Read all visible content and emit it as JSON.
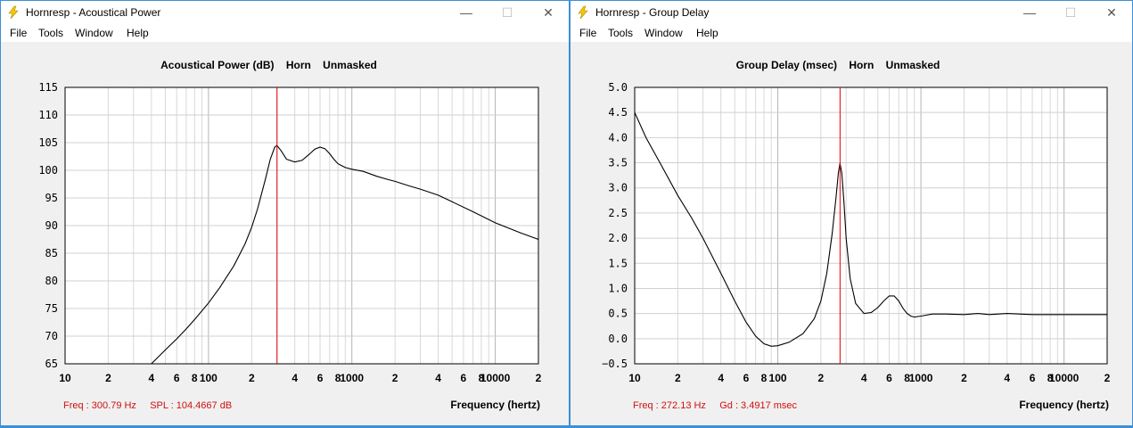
{
  "colors": {
    "accent": "#3b8fd9",
    "marker": "#e00000",
    "readout": "#d01010",
    "curve": "#000000",
    "grid": "#c8c8c8"
  },
  "windows": [
    {
      "title": "Hornresp - Acoustical Power",
      "icon": "lightning-bolt-icon",
      "menu": [
        "File",
        "Tools",
        "Window",
        "Help"
      ],
      "controls": {
        "minimize": "—",
        "maximize": "☐",
        "close": "✕"
      },
      "chart_title": "Acoustical Power (dB)    Horn    Unmasked",
      "readout": "Freq : 300.79 Hz     SPL : 104.4667 dB",
      "xlabel": "Frequency (hertz)"
    },
    {
      "title": "Hornresp - Group Delay",
      "icon": "lightning-bolt-icon",
      "menu": [
        "File",
        "Tools",
        "Window",
        "Help"
      ],
      "controls": {
        "minimize": "—",
        "maximize": "☐",
        "close": "✕"
      },
      "chart_title": "Group Delay (msec)    Horn    Unmasked",
      "readout": "Freq : 272.13 Hz     Gd : 3.4917 msec",
      "xlabel": "Frequency (hertz)"
    }
  ],
  "chart_data": [
    {
      "type": "line",
      "title": "Acoustical Power (dB)    Horn    Unmasked",
      "xlabel": "Frequency (hertz)",
      "ylabel": "",
      "xscale": "log",
      "xlim": [
        10,
        20000
      ],
      "ylim": [
        65,
        115
      ],
      "grid": true,
      "x_tick_labels": [
        "10",
        "2",
        "4",
        "6",
        "8",
        "100",
        "2",
        "4",
        "6",
        "8",
        "1000",
        "2",
        "4",
        "6",
        "8",
        "10000",
        "2"
      ],
      "y_ticks": [
        65,
        70,
        75,
        80,
        85,
        90,
        95,
        100,
        105,
        110,
        115
      ],
      "y_tick_labels": [
        "65",
        "70",
        "75",
        "80",
        "85",
        "90",
        "95",
        "100",
        "105",
        "110",
        "115"
      ],
      "cursor_x": 300.79,
      "series": [
        {
          "x": [
            40,
            50,
            60,
            70,
            80,
            100,
            120,
            150,
            180,
            200,
            220,
            250,
            270,
            290,
            300,
            320,
            350,
            400,
            450,
            500,
            550,
            600,
            650,
            700,
            750,
            800,
            900,
            1000,
            1200,
            1500,
            1800,
            2000,
            2500,
            3000,
            4000,
            5000,
            7000,
            10000,
            15000,
            20000
          ],
          "y": [
            65,
            67.5,
            69.5,
            71.3,
            73,
            76,
            78.8,
            82.7,
            86.7,
            89.7,
            93,
            98.5,
            102,
            104.2,
            104.5,
            103.6,
            102,
            101.5,
            101.8,
            102.8,
            103.8,
            104.2,
            103.9,
            103,
            102,
            101.2,
            100.5,
            100.2,
            99.8,
            98.9,
            98.3,
            98,
            97.2,
            96.6,
            95.5,
            94.3,
            92.5,
            90.5,
            88.7,
            87.5
          ]
        }
      ]
    },
    {
      "type": "line",
      "title": "Group Delay (msec)    Horn    Unmasked",
      "xlabel": "Frequency (hertz)",
      "ylabel": "",
      "xscale": "log",
      "xlim": [
        10,
        20000
      ],
      "ylim": [
        -0.5,
        5.0
      ],
      "grid": true,
      "x_tick_labels": [
        "10",
        "2",
        "4",
        "6",
        "8",
        "100",
        "2",
        "4",
        "6",
        "8",
        "1000",
        "2",
        "4",
        "6",
        "8",
        "10000",
        "2"
      ],
      "y_ticks": [
        -0.5,
        0,
        0.5,
        1,
        1.5,
        2,
        2.5,
        3,
        3.5,
        4,
        4.5,
        5
      ],
      "y_tick_labels": [
        "−0.5",
        "0.0",
        "0.5",
        "1.0",
        "1.5",
        "2.0",
        "2.5",
        "3.0",
        "3.5",
        "4.0",
        "4.5",
        "5.0"
      ],
      "cursor_x": 272.13,
      "series": [
        {
          "x": [
            10,
            12,
            15,
            20,
            25,
            30,
            40,
            50,
            60,
            70,
            80,
            90,
            100,
            120,
            150,
            180,
            200,
            220,
            240,
            255,
            265,
            272,
            280,
            290,
            300,
            320,
            350,
            400,
            450,
            500,
            550,
            600,
            650,
            700,
            750,
            800,
            850,
            900,
            950,
            1000,
            1200,
            1500,
            2000,
            2500,
            3000,
            4000,
            6000,
            10000,
            20000
          ],
          "y": [
            4.5,
            4.0,
            3.5,
            2.85,
            2.4,
            2.0,
            1.3,
            0.75,
            0.33,
            0.05,
            -0.1,
            -0.15,
            -0.14,
            -0.07,
            0.1,
            0.4,
            0.75,
            1.3,
            2.1,
            2.8,
            3.3,
            3.49,
            3.3,
            2.7,
            2.0,
            1.2,
            0.7,
            0.5,
            0.52,
            0.62,
            0.75,
            0.85,
            0.85,
            0.75,
            0.6,
            0.5,
            0.45,
            0.43,
            0.44,
            0.45,
            0.49,
            0.49,
            0.48,
            0.5,
            0.48,
            0.5,
            0.48,
            0.48,
            0.48
          ]
        }
      ]
    }
  ]
}
